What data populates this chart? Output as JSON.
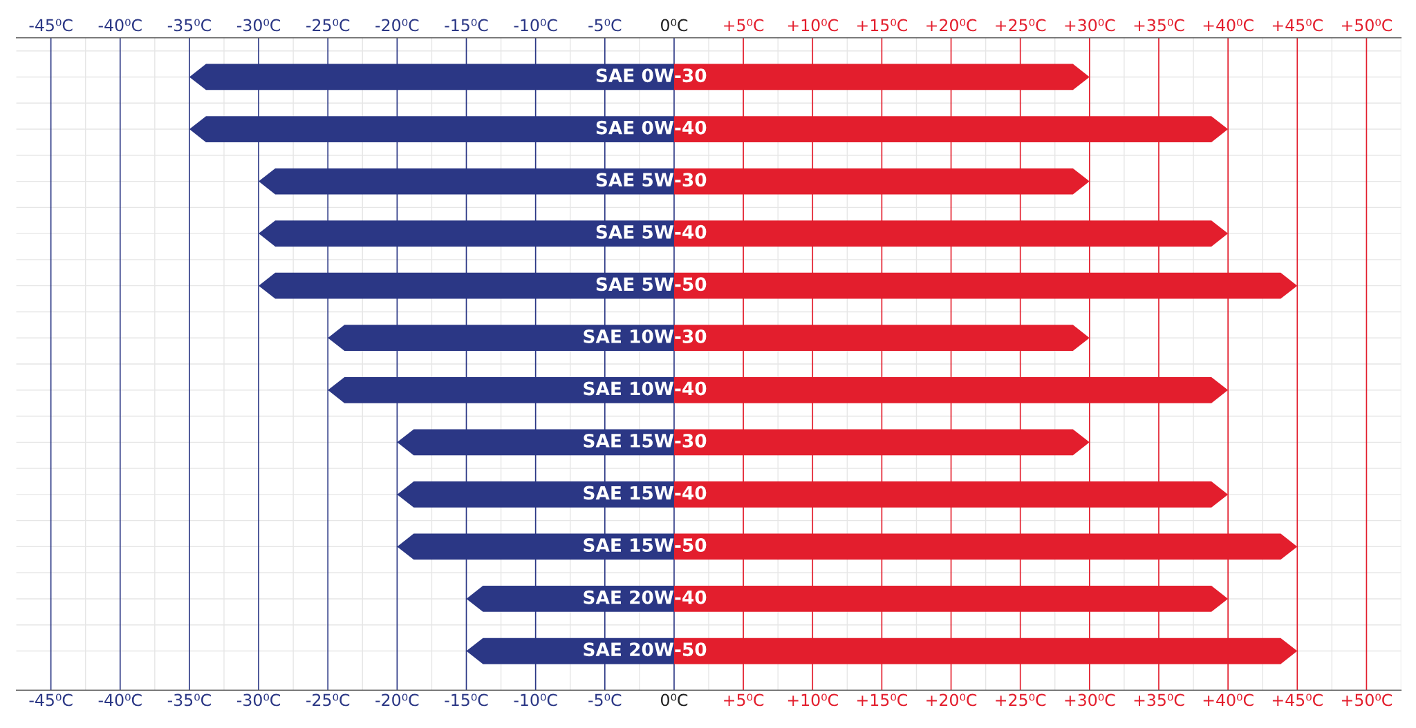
{
  "chart_data": {
    "type": "bar",
    "orientation": "horizontal",
    "stacked": true,
    "categories": [
      "SAE 0W-30",
      "SAE 0W-40",
      "SAE 5W-30",
      "SAE 5W-40",
      "SAE 5W-50",
      "SAE 10W-30",
      "SAE 10W-40",
      "SAE 15W-30",
      "SAE 15W-40",
      "SAE 15W-50",
      "SAE 20W-40",
      "SAE 20W-50"
    ],
    "series": [
      {
        "color": "#2b3785",
        "values": [
          -35,
          -35,
          -30,
          -30,
          -30,
          -25,
          -25,
          -20,
          -20,
          -20,
          -15,
          -15
        ]
      },
      {
        "color": "#e31e2d",
        "values": [
          30,
          40,
          30,
          40,
          45,
          30,
          40,
          30,
          40,
          45,
          40,
          45
        ]
      }
    ],
    "xlim": [
      -47.5,
      52.5
    ],
    "xticks": [
      {
        "value": -45,
        "label": "-45⁰C"
      },
      {
        "value": -40,
        "label": "-40⁰C"
      },
      {
        "value": -35,
        "label": "-35⁰C"
      },
      {
        "value": -30,
        "label": "-30⁰C"
      },
      {
        "value": -25,
        "label": "-25⁰C"
      },
      {
        "value": -20,
        "label": "-20⁰C"
      },
      {
        "value": -15,
        "label": "-15⁰C"
      },
      {
        "value": -10,
        "label": "-10⁰C"
      },
      {
        "value": -5,
        "label": "-5⁰C"
      },
      {
        "value": 0,
        "label": "0⁰C"
      },
      {
        "value": 5,
        "label": "+5⁰C"
      },
      {
        "value": 10,
        "label": "+10⁰C"
      },
      {
        "value": 15,
        "label": "+15⁰C"
      },
      {
        "value": 20,
        "label": "+20⁰C"
      },
      {
        "value": 25,
        "label": "+25⁰C"
      },
      {
        "value": 30,
        "label": "+30⁰C"
      },
      {
        "value": 35,
        "label": "+35⁰C"
      },
      {
        "value": 40,
        "label": "+40⁰C"
      },
      {
        "value": 45,
        "label": "+45⁰C"
      },
      {
        "value": 50,
        "label": "+50⁰C"
      }
    ],
    "x2lim": [
      -47.5,
      52.5
    ],
    "x2ticks": [
      {
        "value": -45,
        "label": "-45⁰C"
      },
      {
        "value": -40,
        "label": "-40⁰C"
      },
      {
        "value": -35,
        "label": "-35⁰C"
      },
      {
        "value": -30,
        "label": "-30⁰C"
      },
      {
        "value": -25,
        "label": "-25⁰C"
      },
      {
        "value": -20,
        "label": "-20⁰C"
      },
      {
        "value": -15,
        "label": "-15⁰C"
      },
      {
        "value": -10,
        "label": "-10⁰C"
      },
      {
        "value": -5,
        "label": "-5⁰C"
      },
      {
        "value": 0,
        "label": "0⁰C"
      },
      {
        "value": 5,
        "label": "+5⁰C"
      },
      {
        "value": 10,
        "label": "+10⁰C"
      },
      {
        "value": 15,
        "label": "+15⁰C"
      },
      {
        "value": 20,
        "label": "+20⁰C"
      },
      {
        "value": 25,
        "label": "+25⁰C"
      },
      {
        "value": 30,
        "label": "+30⁰C"
      },
      {
        "value": 35,
        "label": "+35⁰C"
      },
      {
        "value": 40,
        "label": "+40⁰C"
      },
      {
        "value": 45,
        "label": "+45⁰C"
      },
      {
        "value": 50,
        "label": "+50⁰C"
      }
    ],
    "grid": "x",
    "legend": false
  }
}
